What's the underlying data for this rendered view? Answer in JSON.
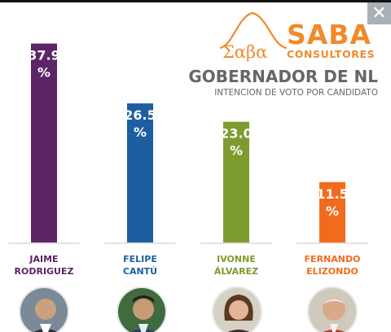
{
  "header": {
    "close_icon": "close-icon",
    "close_glyph": "✕"
  },
  "logo": {
    "greek_text": "Σαβα",
    "brand": "SABA",
    "sub": "CONSULTORES",
    "brand_color": "#f08a2b"
  },
  "chart_data": {
    "type": "bar",
    "title": "GOBERNADOR DE NL",
    "subtitle": "INTENCION DE VOTO POR CANDIDATO",
    "categories": [
      "JAIME RODRIGUEZ",
      "FELIPE CANTÚ",
      "IVONNE ÁLVAREZ",
      "FERNANDO ELIZONDO"
    ],
    "category_lines": [
      [
        "JAIME",
        "RODRIGUEZ"
      ],
      [
        "FELIPE",
        "CANTÚ"
      ],
      [
        "IVONNE",
        "ÁLVAREZ"
      ],
      [
        "FERNANDO",
        "ELIZONDO"
      ]
    ],
    "values": [
      37.9,
      26.5,
      23.0,
      11.5
    ],
    "value_labels": [
      "37.9",
      "26.5",
      "23.0",
      "11.5"
    ],
    "unit": "%",
    "colors": [
      "#5b2566",
      "#1c5fa0",
      "#7e9b2f",
      "#f26b1d"
    ],
    "label_colors": [
      "#5b2566",
      "#1c5fa0",
      "#7e9b2f",
      "#f26b1d"
    ],
    "ylim": [
      0,
      40
    ]
  },
  "avatars": [
    "avatar-jaime-rodriguez",
    "avatar-felipe-cantu",
    "avatar-ivonne-alvarez",
    "avatar-fernando-elizondo"
  ]
}
